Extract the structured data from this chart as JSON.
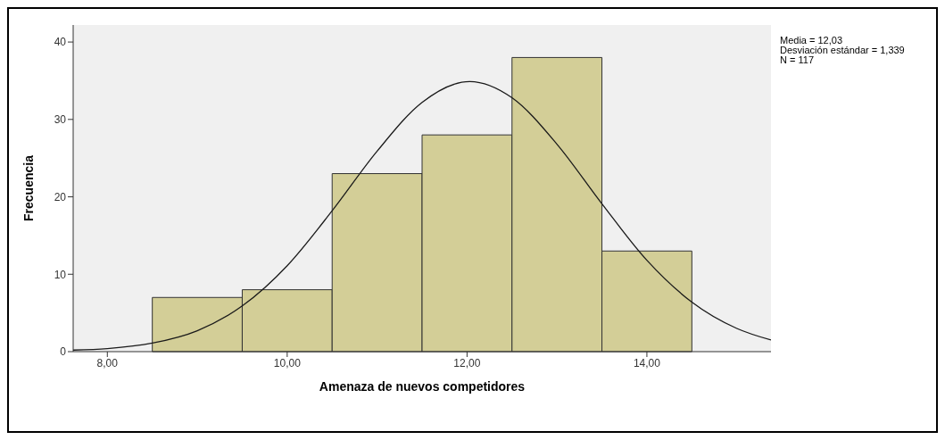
{
  "chart_data": {
    "type": "histogram",
    "xlabel": "Amenaza de nuevos competidores",
    "ylabel": "Frecuencia",
    "bins": [
      8.5,
      9.5,
      10.5,
      11.5,
      12.5,
      13.5,
      14.5
    ],
    "values": [
      7,
      8,
      23,
      28,
      38,
      13
    ],
    "color": "#d3ce97",
    "series": [
      {
        "type": "line",
        "color": "#1a1a1a",
        "x": [
          7.62,
          8.0,
          8.5,
          9.0,
          9.5,
          10.0,
          10.5,
          11.0,
          11.5,
          12.03,
          12.5,
          13.0,
          13.5,
          14.0,
          14.5,
          15.0,
          15.38
        ],
        "values": [
          0.2,
          0.4,
          1.1,
          2.7,
          5.9,
          11.1,
          18.2,
          25.9,
          32.2,
          34.9,
          32.8,
          26.8,
          19.1,
          11.8,
          6.4,
          3.0,
          1.5
        ]
      }
    ],
    "xlim": [
      7.62,
      15.38
    ],
    "xticks": [
      {
        "value": 8,
        "label": "8,00"
      },
      {
        "value": 10,
        "label": "10,00"
      },
      {
        "value": 12,
        "label": "12,00"
      },
      {
        "value": 14,
        "label": "14,00"
      }
    ],
    "ylim": [
      0,
      42.2
    ],
    "yticks": [
      0,
      10,
      20,
      30,
      40
    ],
    "annotations": [
      "Media = 12,03",
      "Desviación estándar = 1,339",
      "N = 117"
    ]
  }
}
